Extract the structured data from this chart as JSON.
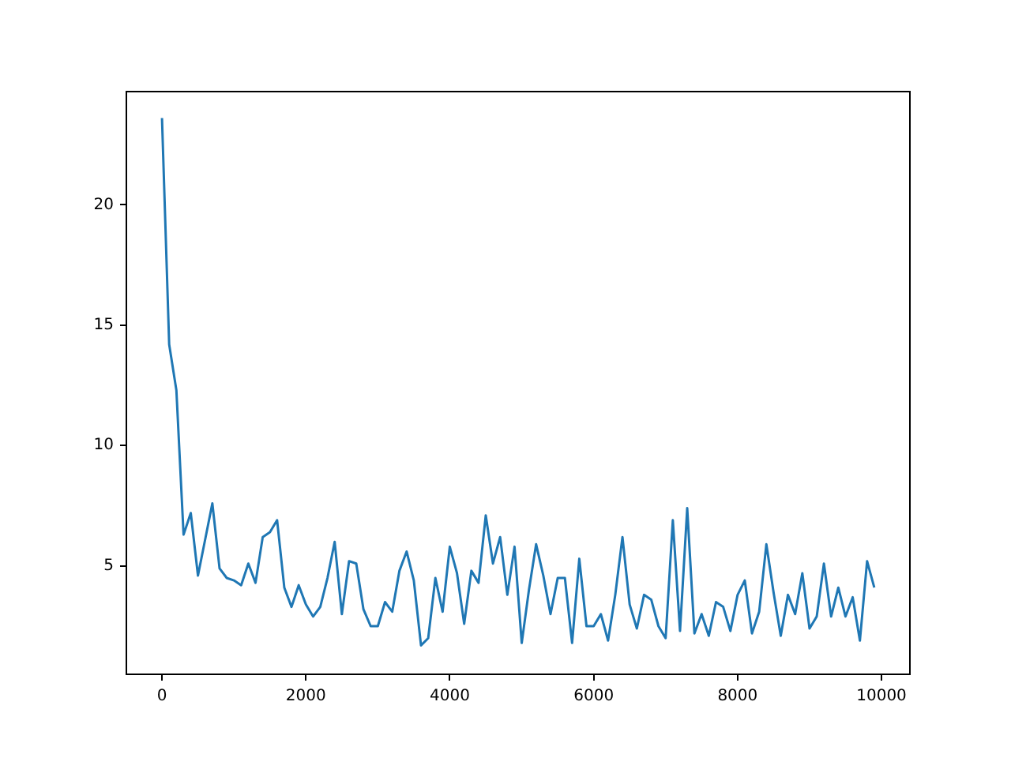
{
  "chart_data": {
    "type": "line",
    "x": [
      0,
      100,
      200,
      300,
      400,
      500,
      600,
      700,
      800,
      900,
      1000,
      1100,
      1200,
      1300,
      1400,
      1500,
      1600,
      1700,
      1800,
      1900,
      2000,
      2100,
      2200,
      2300,
      2400,
      2500,
      2600,
      2700,
      2800,
      2900,
      3000,
      3100,
      3200,
      3300,
      3400,
      3500,
      3600,
      3700,
      3800,
      3900,
      4000,
      4100,
      4200,
      4300,
      4400,
      4500,
      4600,
      4700,
      4800,
      4900,
      5000,
      5100,
      5200,
      5300,
      5400,
      5500,
      5600,
      5700,
      5800,
      5900,
      6000,
      6100,
      6200,
      6300,
      6400,
      6500,
      6600,
      6700,
      6800,
      6900,
      7000,
      7100,
      7200,
      7300,
      7400,
      7500,
      7600,
      7700,
      7800,
      7900,
      8000,
      8100,
      8200,
      8300,
      8400,
      8500,
      8600,
      8700,
      8800,
      8900,
      9000,
      9100,
      9200,
      9300,
      9400,
      9500,
      9600,
      9700,
      9800,
      9900
    ],
    "series": [
      {
        "color": "#1f77b4",
        "values": [
          23.6,
          14.2,
          12.3,
          6.3,
          7.2,
          4.6,
          6.1,
          7.6,
          4.9,
          4.5,
          4.4,
          4.2,
          5.1,
          4.3,
          6.2,
          6.4,
          6.9,
          4.1,
          3.3,
          4.2,
          3.4,
          2.9,
          3.3,
          4.5,
          6.0,
          3.0,
          5.2,
          5.1,
          3.2,
          2.5,
          2.5,
          3.5,
          3.1,
          4.8,
          5.6,
          4.4,
          1.7,
          2.0,
          4.5,
          3.1,
          5.8,
          4.7,
          2.6,
          4.8,
          4.3,
          7.1,
          5.1,
          6.2,
          3.8,
          5.8,
          1.8,
          4.0,
          5.9,
          4.6,
          3.0,
          4.5,
          4.5,
          1.8,
          5.3,
          2.5,
          2.5,
          3.0,
          1.9,
          3.8,
          6.2,
          3.4,
          2.4,
          3.8,
          3.6,
          2.5,
          2.0,
          6.9,
          2.3,
          7.4,
          2.2,
          3.0,
          2.1,
          3.5,
          3.3,
          2.3,
          3.8,
          4.4,
          2.2,
          3.1,
          5.9,
          3.9,
          2.1,
          3.8,
          3.0,
          4.7,
          2.4,
          2.9,
          5.1,
          2.9,
          4.1,
          2.9,
          3.7,
          1.9,
          5.2,
          4.1
        ]
      }
    ],
    "xlim": [
      -495,
      10395
    ],
    "xticks": [
      0,
      2000,
      4000,
      6000,
      8000,
      10000
    ],
    "ylim": [
      0.5,
      24.7
    ],
    "yticks": [
      5,
      10,
      15,
      20
    ],
    "grid": false,
    "legend": false,
    "marker": "none",
    "line_style": "solid"
  }
}
